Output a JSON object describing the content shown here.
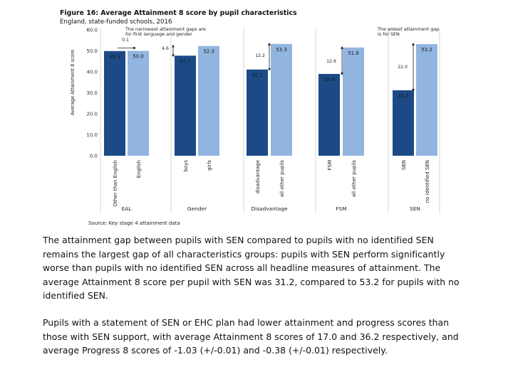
{
  "chart_data": {
    "type": "bar",
    "title": "Figure 16: Average Attainment 8 score by pupil characteristics",
    "subtitle": "England, state-funded schools, 2016",
    "ylabel": "Average Attainment 8 score",
    "ylim": [
      0,
      60
    ],
    "yticks": [
      "0.0",
      "10.0",
      "20.0",
      "30.0",
      "40.0",
      "50.0",
      "60.0"
    ],
    "grid": false,
    "source": "Source: Key stage 4 attainment data",
    "colors": {
      "dark": "#1c4a87",
      "light": "#92b5e0"
    },
    "groups": [
      {
        "label": "EAL",
        "bars": [
          {
            "category": "Other than English",
            "value": 49.9,
            "label": "49.9",
            "shade": "dark"
          },
          {
            "category": "English",
            "value": 50.0,
            "label": "50.0",
            "shade": "light"
          }
        ],
        "gap": "0.1"
      },
      {
        "label": "Gender",
        "bars": [
          {
            "category": "boys",
            "value": 47.7,
            "label": "47.7",
            "shade": "dark"
          },
          {
            "category": "girls",
            "value": 52.3,
            "label": "52.3",
            "shade": "light"
          }
        ],
        "gap": "4.6"
      },
      {
        "label": "Disadvantage",
        "bars": [
          {
            "category": "disadvantage",
            "value": 41.1,
            "label": "41.1",
            "shade": "dark"
          },
          {
            "category": "all other pupils",
            "value": 53.3,
            "label": "53.3",
            "shade": "light"
          }
        ],
        "gap": "12.2"
      },
      {
        "label": "FSM",
        "bars": [
          {
            "category": "FSM",
            "value": 39.0,
            "label": "39.0",
            "shade": "dark"
          },
          {
            "category": "all other pupils",
            "value": 51.6,
            "label": "51.6",
            "shade": "light"
          }
        ],
        "gap": "12.6"
      },
      {
        "label": "SEN",
        "bars": [
          {
            "category": "SEN",
            "value": 31.2,
            "label": "31.2",
            "shade": "dark"
          },
          {
            "category": "no identified SEN",
            "value": 53.2,
            "label": "53.2",
            "shade": "light"
          }
        ],
        "gap": "22.0"
      }
    ],
    "annotations": [
      "The narrowest attainment gaps are for first language and gender",
      "The widest attainment gap is for SEN"
    ]
  },
  "body_text": {
    "paragraph1": "The attainment gap between pupils with SEN compared to pupils with no identified SEN remains the largest gap of all characteristics groups: pupils with SEN perform significantly worse than pupils with no identified SEN across all headline measures of attainment. The average Attainment 8 score per pupil with SEN was 31.2, compared to 53.2 for pupils with no identified SEN.",
    "paragraph2": "Pupils with a statement of SEN or EHC plan had lower attainment and progress scores than those with SEN support, with average Attainment 8 scores of 17.0 and 36.2 respectively, and average Progress 8 scores of -1.03 (+/-0.01) and -0.38 (+/-0.01) respectively."
  }
}
